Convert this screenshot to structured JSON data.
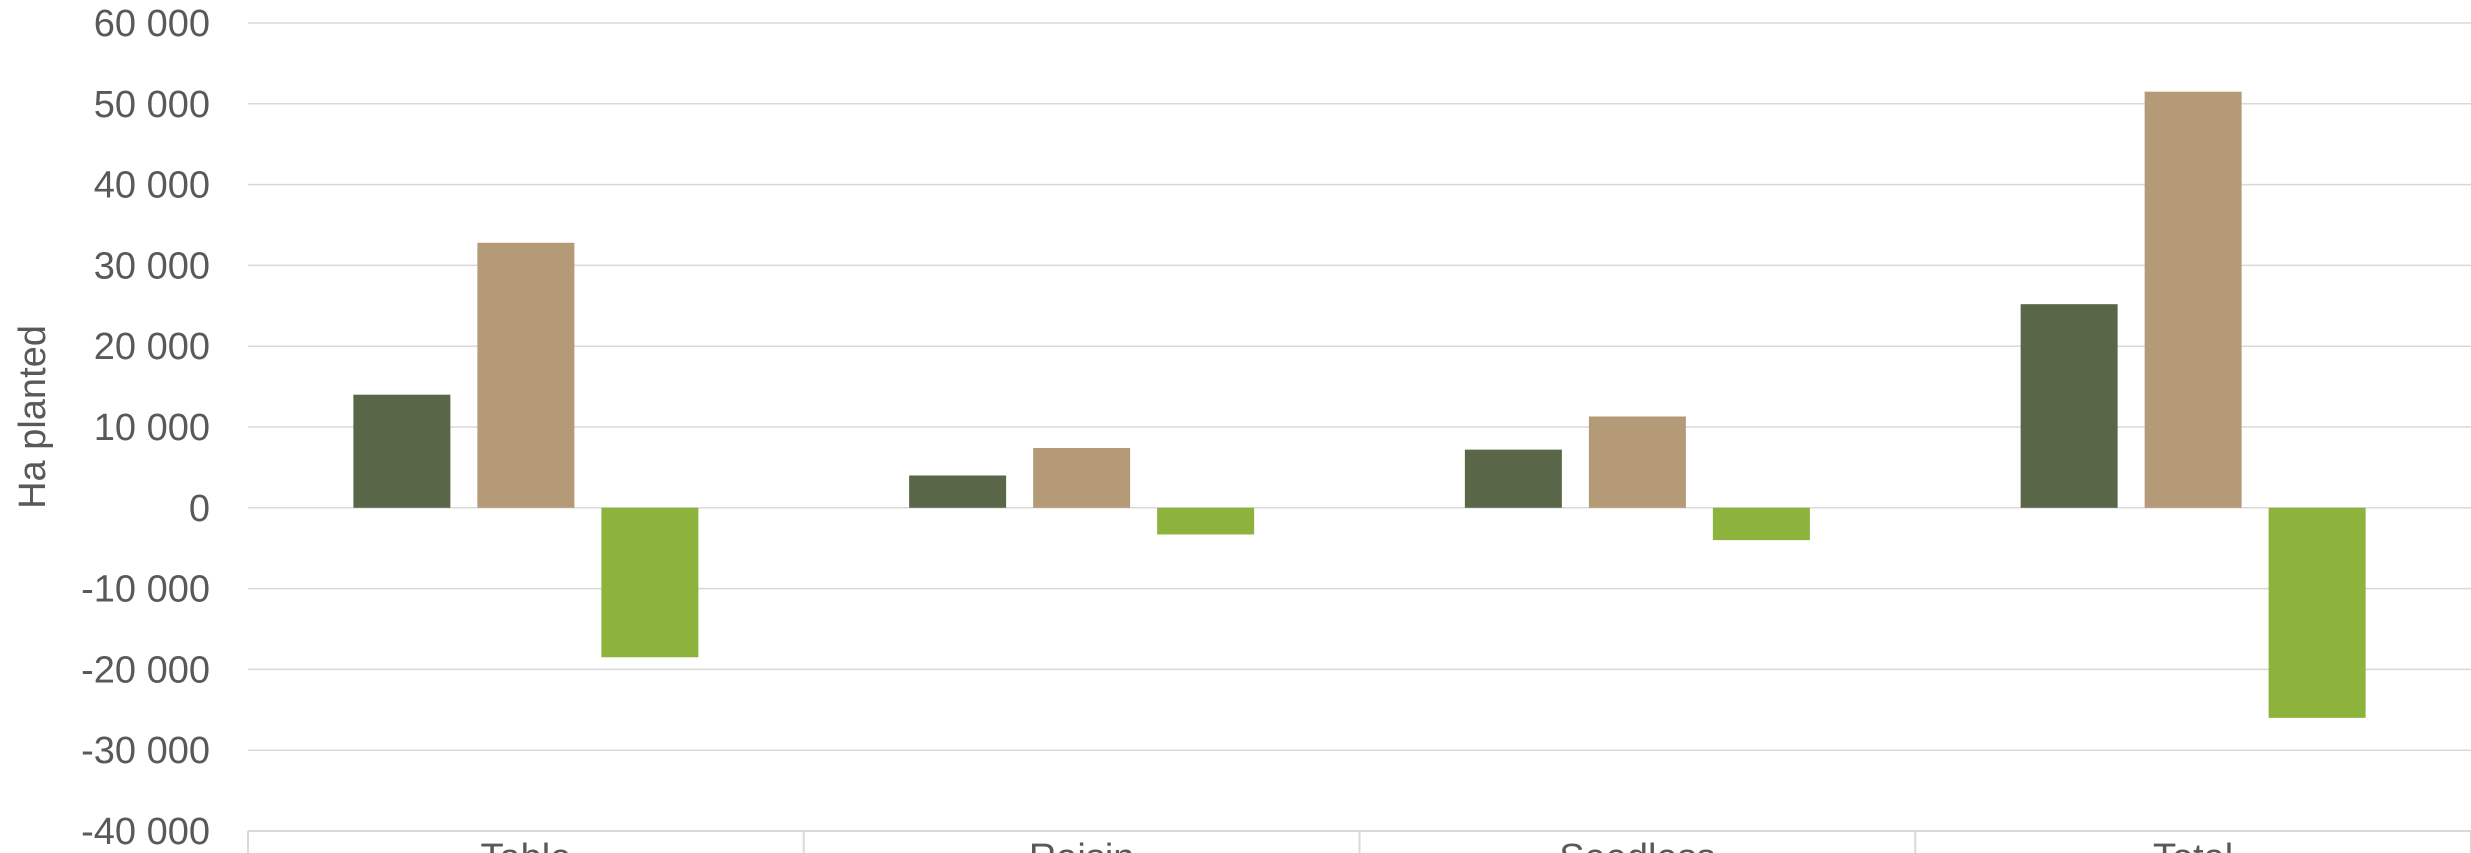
{
  "chart_data": {
    "type": "bar",
    "ylabel": "Ha planted",
    "xlabel": "",
    "ylim": [
      -40000,
      60000
    ],
    "yticks": [
      60000,
      50000,
      40000,
      30000,
      20000,
      10000,
      0,
      -10000,
      -20000,
      -30000,
      -40000
    ],
    "ytick_labels": [
      "60 000",
      "50 000",
      "40 000",
      "30 000",
      "20 000",
      "10 000",
      "0",
      "-10 000",
      "-20 000",
      "-30 000",
      "-40 000"
    ],
    "categories": [
      "Table",
      "Raisin",
      "Seedless",
      "Total"
    ],
    "grid": true,
    "series": [
      {
        "color": "#596748",
        "values": [
          14000,
          4000,
          7200,
          25200
        ]
      },
      {
        "color": "#b59a78",
        "values": [
          32800,
          7400,
          11300,
          51500
        ]
      },
      {
        "color": "#8db33d",
        "values": [
          -18500,
          -3300,
          -4000,
          -26000
        ]
      }
    ]
  }
}
